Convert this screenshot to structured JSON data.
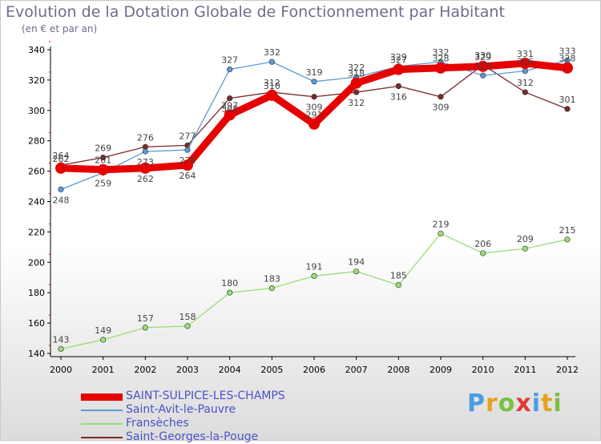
{
  "title": "Evolution de la Dotation Globale de Fonctionnement par Habitant",
  "subtitle": "(en € et par an)",
  "logo": {
    "text": "Proxiti",
    "letters": [
      "P",
      "r",
      "o",
      "x",
      "i",
      "t",
      "i"
    ],
    "colors": [
      "#4a9de0",
      "#e8a020",
      "#7ac043",
      "#e03a3a",
      "#4a9de0",
      "#e8a020",
      "#7ac043"
    ]
  },
  "chart_data": {
    "type": "line",
    "title": "Evolution de la Dotation Globale de Fonctionnement par Habitant",
    "ylabel": "(en € et par an)",
    "xlabel": "",
    "x": [
      "2000",
      "2001",
      "2002",
      "2003",
      "2004",
      "2005",
      "2006",
      "2007",
      "2008",
      "2009",
      "2010",
      "2011",
      "2012"
    ],
    "ylim": [
      140,
      340
    ],
    "yticks": [
      140,
      160,
      180,
      200,
      220,
      240,
      260,
      280,
      300,
      320,
      340
    ],
    "grid": false,
    "series": [
      {
        "name": "SAINT-SULPICE-LES-CHAMPS",
        "color": "#e60000",
        "style": "thick",
        "values": [
          262,
          261,
          262,
          264,
          297,
          310,
          291,
          318,
          327,
          328,
          329,
          331,
          328
        ]
      },
      {
        "name": "Saint-Avit-le-Pauvre",
        "color": "#5b9bd5",
        "style": "thin",
        "values": [
          248,
          259,
          273,
          274,
          327,
          332,
          319,
          322,
          329,
          332,
          323,
          326,
          333
        ]
      },
      {
        "name": "Fransèches",
        "color": "#99dd77",
        "style": "thin",
        "values": [
          143,
          149,
          157,
          158,
          180,
          183,
          191,
          194,
          185,
          219,
          206,
          209,
          215
        ]
      },
      {
        "name": "Saint-Georges-la-Pouge",
        "color": "#7a2a2a",
        "style": "thin",
        "values": [
          264,
          269,
          276,
          277,
          308,
          312,
          309,
          312,
          316,
          309,
          330,
          312,
          301
        ]
      }
    ],
    "data_label_offsets": [
      [
        -1,
        -1,
        1,
        1,
        -1,
        -1,
        -1,
        -1,
        -1,
        -1,
        -1,
        -1,
        -1
      ],
      [
        1,
        1,
        1,
        1,
        -1,
        -1,
        -1,
        -1,
        -1,
        -1,
        -1,
        -1,
        -1
      ],
      [
        -1,
        -1,
        -1,
        -1,
        -1,
        -1,
        -1,
        -1,
        -1,
        -1,
        -1,
        -1,
        -1
      ],
      [
        -1,
        -1,
        -1,
        -1,
        1,
        -1,
        1,
        1,
        1,
        1,
        -1,
        -1,
        -1
      ]
    ]
  }
}
